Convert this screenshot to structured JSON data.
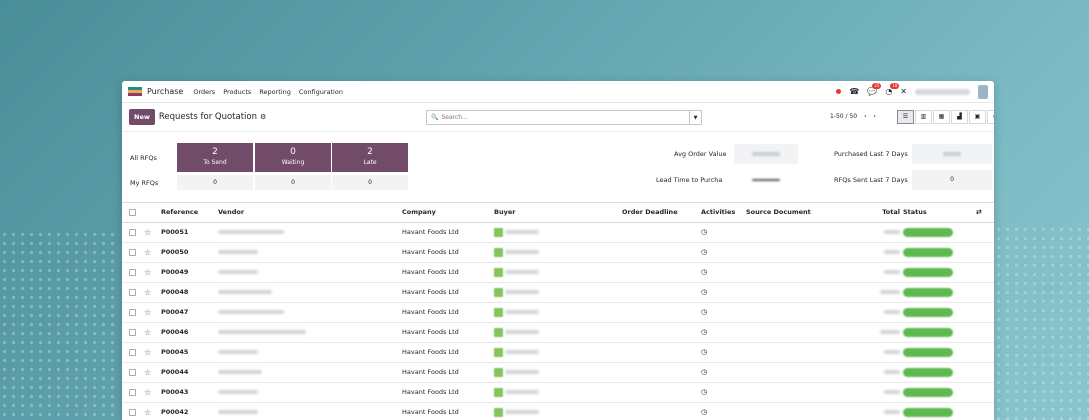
{
  "navbar": {
    "app_name": "Purchase",
    "menu": [
      "Orders",
      "Products",
      "Reporting",
      "Configuration"
    ],
    "chat_badge": "25",
    "activity_badge": "18"
  },
  "control": {
    "new_label": "New",
    "title": "Requests for Quotation",
    "search_placeholder": "Search...",
    "pager": "1-50 / 50"
  },
  "dashboard": {
    "all_rfqs_label": "All RFQs",
    "my_rfqs_label": "My RFQs",
    "tiles": [
      {
        "num": "2",
        "label": "To Send",
        "mine": "0"
      },
      {
        "num": "0",
        "label": "Waiting",
        "mine": "0"
      },
      {
        "num": "2",
        "label": "Late",
        "mine": "0"
      }
    ],
    "avg_order_value_label": "Avg Order Value",
    "lead_time_label": "Lead Time to Purcha",
    "purchased_last7_label": "Purchased Last 7 Days",
    "rfqs_sent_last7_label": "RFQs Sent Last 7 Days",
    "rfqs_sent_last7_value": "0"
  },
  "table": {
    "headers": {
      "reference": "Reference",
      "vendor": "Vendor",
      "company": "Company",
      "buyer": "Buyer",
      "order_deadline": "Order Deadline",
      "activities": "Activities",
      "source_document": "Source Document",
      "total": "Total",
      "status": "Status"
    },
    "rows": [
      {
        "reference": "P00051",
        "company": "Havant Foods Ltd"
      },
      {
        "reference": "P00050",
        "company": "Havant Foods Ltd"
      },
      {
        "reference": "P00049",
        "company": "Havant Foods Ltd"
      },
      {
        "reference": "P00048",
        "company": "Havant Foods Ltd"
      },
      {
        "reference": "P00047",
        "company": "Havant Foods Ltd"
      },
      {
        "reference": "P00046",
        "company": "Havant Foods Ltd"
      },
      {
        "reference": "P00045",
        "company": "Havant Foods Ltd"
      },
      {
        "reference": "P00044",
        "company": "Havant Foods Ltd"
      },
      {
        "reference": "P00043",
        "company": "Havant Foods Ltd"
      },
      {
        "reference": "P00042",
        "company": "Havant Foods Ltd"
      }
    ]
  }
}
